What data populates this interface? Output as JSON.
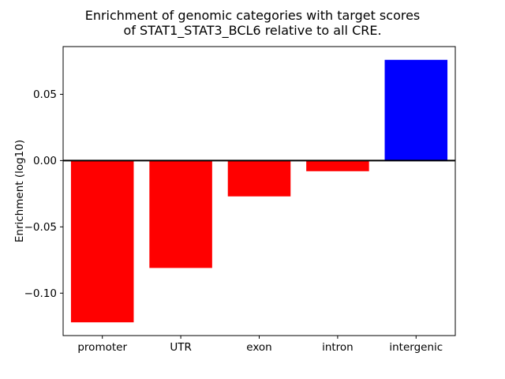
{
  "figure": {
    "background": "#ffffff"
  },
  "chart_data": {
    "type": "bar",
    "title_line1": "Enrichment of genomic categories with target scores",
    "title_line2": "of STAT1_STAT3_BCL6 relative to all CRE.",
    "ylabel": "Enrichment (log10)",
    "xlabel": "",
    "categories": [
      "promoter",
      "UTR",
      "exon",
      "intron",
      "intergenic"
    ],
    "values": [
      -0.122,
      -0.081,
      -0.027,
      -0.008,
      0.076
    ],
    "bar_colors": [
      "#ff0000",
      "#ff0000",
      "#ff0000",
      "#ff0000",
      "#0000ff"
    ],
    "negative_color": "#ff0000",
    "positive_color": "#0000ff",
    "yticks": [
      0.05,
      0.0,
      -0.05,
      -0.1
    ],
    "ylim": [
      -0.132,
      0.086
    ],
    "grid": false,
    "zero_line": true,
    "axis_color": "#000000"
  }
}
